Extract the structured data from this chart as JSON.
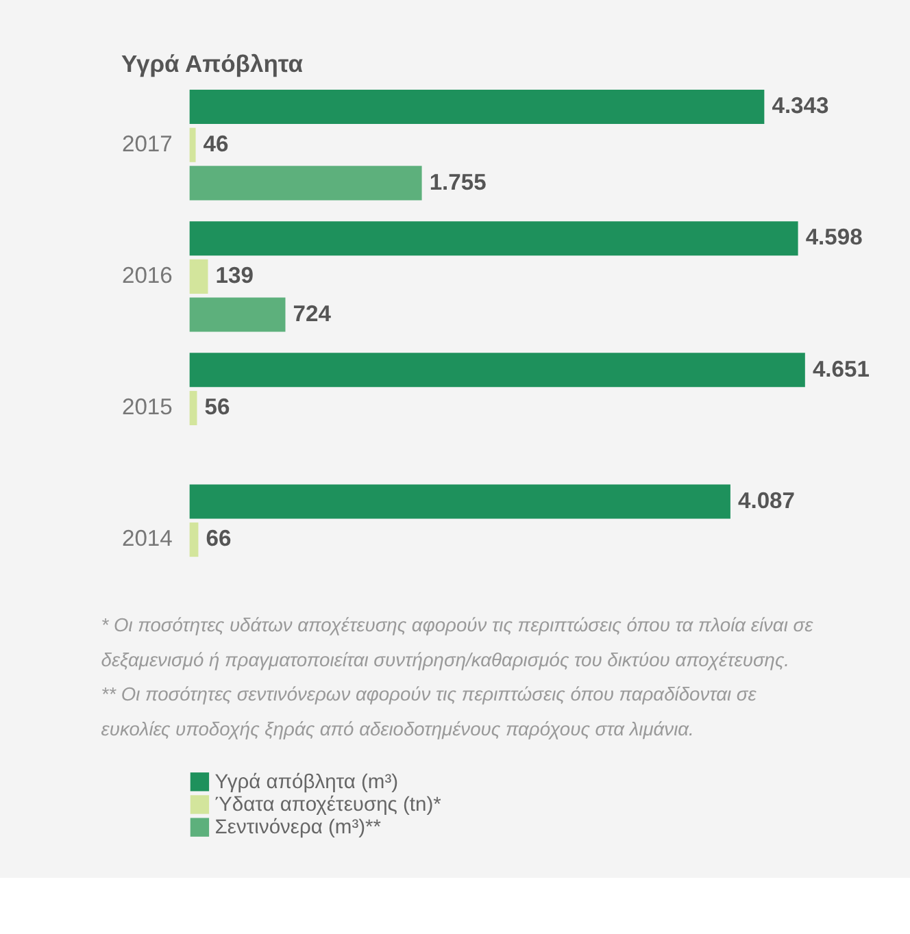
{
  "chart_data": {
    "type": "bar",
    "orientation": "horizontal",
    "title": "Υγρά Απόβλητα",
    "categories": [
      "2017",
      "2016",
      "2015",
      "2014"
    ],
    "series": [
      {
        "name": "Υγρά απόβλητα (m³)",
        "color": "#1e915c",
        "values": [
          4343,
          4598,
          4651,
          4087
        ],
        "value_labels": [
          "4.343",
          "4.598",
          "4.651",
          "4.087"
        ]
      },
      {
        "name": "Ύδατα αποχέτευσης (tn)*",
        "color": "#d3e59c",
        "values": [
          46,
          139,
          56,
          66
        ],
        "value_labels": [
          "46",
          "139",
          "56",
          "66"
        ]
      },
      {
        "name": "Σεντινόνερα (m³)**",
        "color": "#5db07c",
        "values": [
          1755,
          724,
          null,
          null
        ],
        "value_labels": [
          "1.755",
          "724",
          null,
          null
        ]
      }
    ],
    "legend": "bottom",
    "tick_labels": "y",
    "grid": false,
    "annotations": [
      "*   Οι ποσότητες υδάτων αποχέτευσης αφορούν τις περιπτώσεις όπου τα πλοία είναι σε δεξαμενισμό ή πραγματοποιείται συντήρηση/καθαρισμός του δικτύου αποχέτευσης.",
      "**  Οι ποσότητες σεντινόνερων αφορούν τις περιπτώσεις όπου παραδίδονται σε ευκολίες υποδοχής ξηράς από αδειοδοτημένους παρόχους στα λιμάνια."
    ]
  }
}
